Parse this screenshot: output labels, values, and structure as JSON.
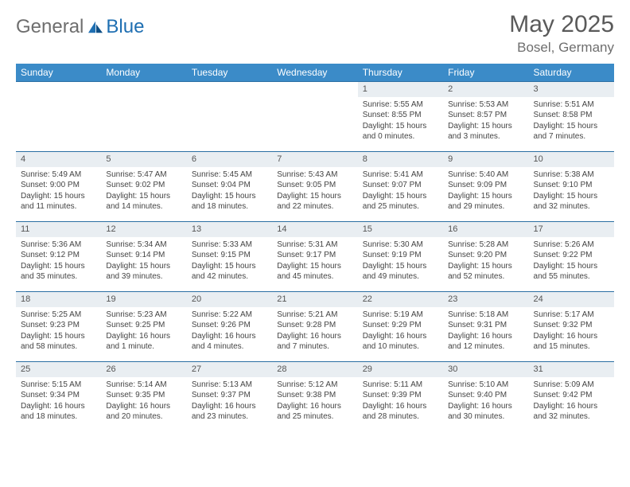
{
  "brand": {
    "general": "General",
    "blue": "Blue"
  },
  "title": "May 2025",
  "location": "Bosel, Germany",
  "colors": {
    "header_bg": "#3b8bc8",
    "header_text": "#ffffff",
    "daynum_bg": "#e9eef2",
    "rule": "#2b6fa3",
    "text": "#444444",
    "title_color": "#5a5a5a",
    "logo_gray": "#6e6e6e",
    "logo_blue": "#1f6fb2"
  },
  "day_headers": [
    "Sunday",
    "Monday",
    "Tuesday",
    "Wednesday",
    "Thursday",
    "Friday",
    "Saturday"
  ],
  "weeks": [
    [
      {
        "empty": true
      },
      {
        "empty": true
      },
      {
        "empty": true
      },
      {
        "empty": true
      },
      {
        "num": "1",
        "sunrise": "Sunrise: 5:55 AM",
        "sunset": "Sunset: 8:55 PM",
        "daylight": "Daylight: 15 hours and 0 minutes."
      },
      {
        "num": "2",
        "sunrise": "Sunrise: 5:53 AM",
        "sunset": "Sunset: 8:57 PM",
        "daylight": "Daylight: 15 hours and 3 minutes."
      },
      {
        "num": "3",
        "sunrise": "Sunrise: 5:51 AM",
        "sunset": "Sunset: 8:58 PM",
        "daylight": "Daylight: 15 hours and 7 minutes."
      }
    ],
    [
      {
        "num": "4",
        "sunrise": "Sunrise: 5:49 AM",
        "sunset": "Sunset: 9:00 PM",
        "daylight": "Daylight: 15 hours and 11 minutes."
      },
      {
        "num": "5",
        "sunrise": "Sunrise: 5:47 AM",
        "sunset": "Sunset: 9:02 PM",
        "daylight": "Daylight: 15 hours and 14 minutes."
      },
      {
        "num": "6",
        "sunrise": "Sunrise: 5:45 AM",
        "sunset": "Sunset: 9:04 PM",
        "daylight": "Daylight: 15 hours and 18 minutes."
      },
      {
        "num": "7",
        "sunrise": "Sunrise: 5:43 AM",
        "sunset": "Sunset: 9:05 PM",
        "daylight": "Daylight: 15 hours and 22 minutes."
      },
      {
        "num": "8",
        "sunrise": "Sunrise: 5:41 AM",
        "sunset": "Sunset: 9:07 PM",
        "daylight": "Daylight: 15 hours and 25 minutes."
      },
      {
        "num": "9",
        "sunrise": "Sunrise: 5:40 AM",
        "sunset": "Sunset: 9:09 PM",
        "daylight": "Daylight: 15 hours and 29 minutes."
      },
      {
        "num": "10",
        "sunrise": "Sunrise: 5:38 AM",
        "sunset": "Sunset: 9:10 PM",
        "daylight": "Daylight: 15 hours and 32 minutes."
      }
    ],
    [
      {
        "num": "11",
        "sunrise": "Sunrise: 5:36 AM",
        "sunset": "Sunset: 9:12 PM",
        "daylight": "Daylight: 15 hours and 35 minutes."
      },
      {
        "num": "12",
        "sunrise": "Sunrise: 5:34 AM",
        "sunset": "Sunset: 9:14 PM",
        "daylight": "Daylight: 15 hours and 39 minutes."
      },
      {
        "num": "13",
        "sunrise": "Sunrise: 5:33 AM",
        "sunset": "Sunset: 9:15 PM",
        "daylight": "Daylight: 15 hours and 42 minutes."
      },
      {
        "num": "14",
        "sunrise": "Sunrise: 5:31 AM",
        "sunset": "Sunset: 9:17 PM",
        "daylight": "Daylight: 15 hours and 45 minutes."
      },
      {
        "num": "15",
        "sunrise": "Sunrise: 5:30 AM",
        "sunset": "Sunset: 9:19 PM",
        "daylight": "Daylight: 15 hours and 49 minutes."
      },
      {
        "num": "16",
        "sunrise": "Sunrise: 5:28 AM",
        "sunset": "Sunset: 9:20 PM",
        "daylight": "Daylight: 15 hours and 52 minutes."
      },
      {
        "num": "17",
        "sunrise": "Sunrise: 5:26 AM",
        "sunset": "Sunset: 9:22 PM",
        "daylight": "Daylight: 15 hours and 55 minutes."
      }
    ],
    [
      {
        "num": "18",
        "sunrise": "Sunrise: 5:25 AM",
        "sunset": "Sunset: 9:23 PM",
        "daylight": "Daylight: 15 hours and 58 minutes."
      },
      {
        "num": "19",
        "sunrise": "Sunrise: 5:23 AM",
        "sunset": "Sunset: 9:25 PM",
        "daylight": "Daylight: 16 hours and 1 minute."
      },
      {
        "num": "20",
        "sunrise": "Sunrise: 5:22 AM",
        "sunset": "Sunset: 9:26 PM",
        "daylight": "Daylight: 16 hours and 4 minutes."
      },
      {
        "num": "21",
        "sunrise": "Sunrise: 5:21 AM",
        "sunset": "Sunset: 9:28 PM",
        "daylight": "Daylight: 16 hours and 7 minutes."
      },
      {
        "num": "22",
        "sunrise": "Sunrise: 5:19 AM",
        "sunset": "Sunset: 9:29 PM",
        "daylight": "Daylight: 16 hours and 10 minutes."
      },
      {
        "num": "23",
        "sunrise": "Sunrise: 5:18 AM",
        "sunset": "Sunset: 9:31 PM",
        "daylight": "Daylight: 16 hours and 12 minutes."
      },
      {
        "num": "24",
        "sunrise": "Sunrise: 5:17 AM",
        "sunset": "Sunset: 9:32 PM",
        "daylight": "Daylight: 16 hours and 15 minutes."
      }
    ],
    [
      {
        "num": "25",
        "sunrise": "Sunrise: 5:15 AM",
        "sunset": "Sunset: 9:34 PM",
        "daylight": "Daylight: 16 hours and 18 minutes."
      },
      {
        "num": "26",
        "sunrise": "Sunrise: 5:14 AM",
        "sunset": "Sunset: 9:35 PM",
        "daylight": "Daylight: 16 hours and 20 minutes."
      },
      {
        "num": "27",
        "sunrise": "Sunrise: 5:13 AM",
        "sunset": "Sunset: 9:37 PM",
        "daylight": "Daylight: 16 hours and 23 minutes."
      },
      {
        "num": "28",
        "sunrise": "Sunrise: 5:12 AM",
        "sunset": "Sunset: 9:38 PM",
        "daylight": "Daylight: 16 hours and 25 minutes."
      },
      {
        "num": "29",
        "sunrise": "Sunrise: 5:11 AM",
        "sunset": "Sunset: 9:39 PM",
        "daylight": "Daylight: 16 hours and 28 minutes."
      },
      {
        "num": "30",
        "sunrise": "Sunrise: 5:10 AM",
        "sunset": "Sunset: 9:40 PM",
        "daylight": "Daylight: 16 hours and 30 minutes."
      },
      {
        "num": "31",
        "sunrise": "Sunrise: 5:09 AM",
        "sunset": "Sunset: 9:42 PM",
        "daylight": "Daylight: 16 hours and 32 minutes."
      }
    ]
  ]
}
